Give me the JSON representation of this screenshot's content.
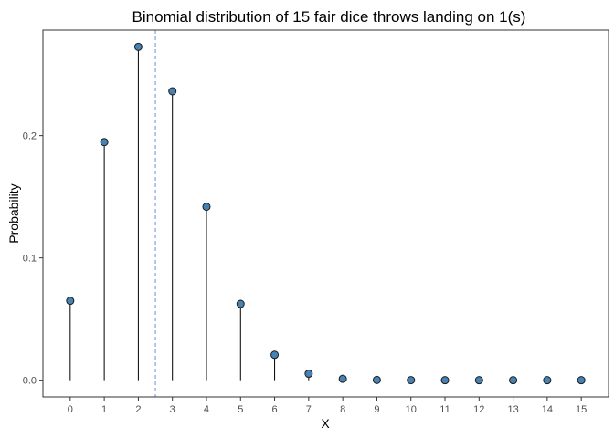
{
  "chart_data": {
    "type": "lollipop",
    "title": "Binomial distribution of 15 fair dice throws landing on 1(s)",
    "xlabel": "X",
    "ylabel": "Probability",
    "x": [
      0,
      1,
      2,
      3,
      4,
      5,
      6,
      7,
      8,
      9,
      10,
      11,
      12,
      13,
      14,
      15
    ],
    "values": [
      0.0649,
      0.1947,
      0.2726,
      0.2363,
      0.1418,
      0.0624,
      0.0208,
      0.0053,
      0.0011,
      0.0002,
      2e-05,
      2e-06,
      1e-07,
      0.0,
      0.0,
      0.0
    ],
    "x_ticks": [
      "0",
      "1",
      "2",
      "3",
      "4",
      "5",
      "6",
      "7",
      "8",
      "9",
      "10",
      "11",
      "12",
      "13",
      "14",
      "15"
    ],
    "y_ticks": [
      "0.0",
      "0.1",
      "0.2"
    ],
    "y_tick_values": [
      0.0,
      0.1,
      0.2
    ],
    "xlim": [
      -0.8,
      15.8
    ],
    "ylim": [
      -0.0137,
      0.2863
    ],
    "mean_line": 2.5,
    "grid": false,
    "colors": {
      "point_fill": "#4682b4",
      "point_stroke": "#1a1a1a",
      "stem": "#000000",
      "mean_line": "#6a8fd6",
      "panel_border": "#333333"
    }
  }
}
